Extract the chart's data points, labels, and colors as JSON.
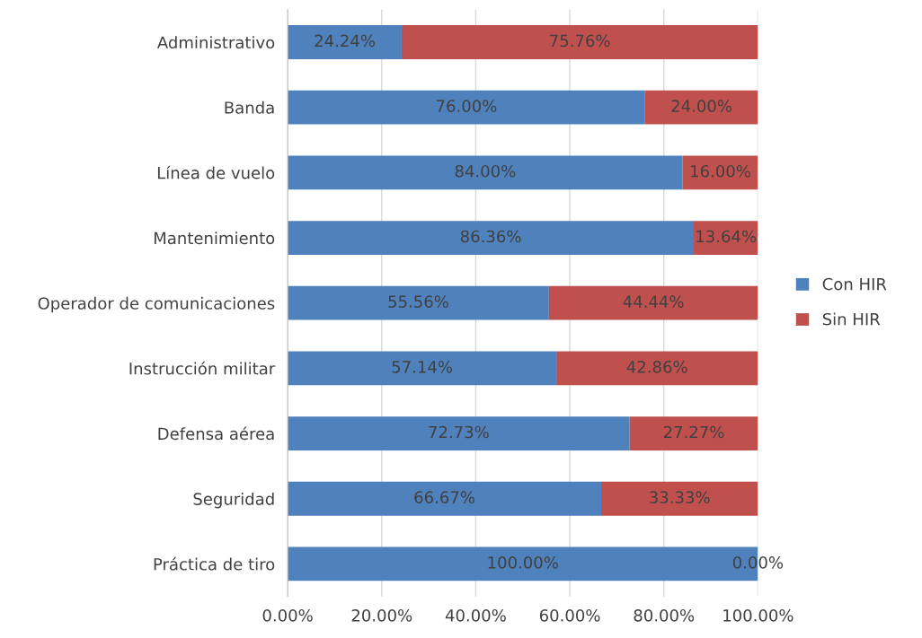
{
  "chart_data": {
    "type": "bar",
    "orientation": "horizontal",
    "stacked": true,
    "categories": [
      "Administrativo",
      "Banda",
      "Línea de vuelo",
      "Mantenimiento",
      "Operador de comunicaciones",
      "Instrucción militar",
      "Defensa aérea",
      "Seguridad",
      "Práctica de tiro"
    ],
    "series": [
      {
        "name": "Con HIR",
        "color": "#4f81bd",
        "values": [
          24.24,
          76.0,
          84.0,
          86.36,
          55.56,
          57.14,
          72.73,
          66.67,
          100.0
        ],
        "value_labels": [
          "24.24%",
          "76.00%",
          "84.00%",
          "86.36%",
          "55.56%",
          "57.14%",
          "72.73%",
          "66.67%",
          "100.00%"
        ]
      },
      {
        "name": "Sin HIR",
        "color": "#c0504d",
        "values": [
          75.76,
          24.0,
          16.0,
          13.64,
          44.44,
          42.86,
          27.27,
          33.33,
          0.0
        ],
        "value_labels": [
          "75.76%",
          "24.00%",
          "16.00%",
          "13.64%",
          "44.44%",
          "42.86%",
          "27.27%",
          "33.33%",
          "0.00%"
        ]
      }
    ],
    "xlim": [
      0,
      100
    ],
    "xticks": [
      {
        "value": 0,
        "label": "0.00%"
      },
      {
        "value": 20,
        "label": "20.00%"
      },
      {
        "value": 40,
        "label": "40.00%"
      },
      {
        "value": 60,
        "label": "60.00%"
      },
      {
        "value": 80,
        "label": "80.00%"
      },
      {
        "value": 100,
        "label": "100.00%"
      }
    ],
    "grid": "x",
    "legend": "right"
  }
}
